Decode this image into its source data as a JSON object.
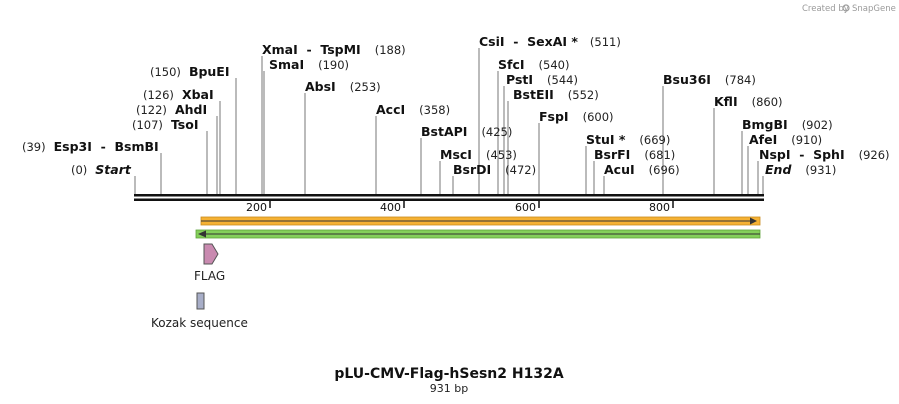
{
  "logo": {
    "created_by": "Created by",
    "brand": "SnapGene"
  },
  "plasmid": {
    "name": "pLU-CMV-Flag-hSesn2 H132A",
    "length_label": "931 bp"
  },
  "ticks": [
    "200",
    "400",
    "600",
    "800"
  ],
  "sites": [
    {
      "label": "Start",
      "pos": "(0)",
      "italic": true
    },
    {
      "label": "Esp3I  -  BsmBI",
      "pos": "(39)"
    },
    {
      "label": "TsoI",
      "pos": "(107)"
    },
    {
      "label": "AhdI",
      "pos": "(122)"
    },
    {
      "label": "XbaI",
      "pos": "(126)"
    },
    {
      "label": "BpuEI",
      "pos": "(150)"
    },
    {
      "label": "SmaI",
      "pos": "(190)"
    },
    {
      "label": "XmaI  -  TspMI",
      "pos": "(188)"
    },
    {
      "label": "AbsI",
      "pos": "(253)"
    },
    {
      "label": "AccI",
      "pos": "(358)"
    },
    {
      "label": "BstAPI",
      "pos": "(425)"
    },
    {
      "label": "MscI",
      "pos": "(453)"
    },
    {
      "label": "BsrDI",
      "pos": "(472)"
    },
    {
      "label": "CsiI  -  SexAI *",
      "pos": "(511)"
    },
    {
      "label": "SfcI",
      "pos": "(540)"
    },
    {
      "label": "PstI",
      "pos": "(544)"
    },
    {
      "label": "BstEII",
      "pos": "(552)"
    },
    {
      "label": "FspI",
      "pos": "(600)"
    },
    {
      "label": "StuI *",
      "pos": "(669)"
    },
    {
      "label": "BsrFI",
      "pos": "(681)"
    },
    {
      "label": "AcuI",
      "pos": "(696)"
    },
    {
      "label": "Bsu36I",
      "pos": "(784)"
    },
    {
      "label": "KflI",
      "pos": "(860)"
    },
    {
      "label": "BmgBI",
      "pos": "(902)"
    },
    {
      "label": "AfeI",
      "pos": "(910)"
    },
    {
      "label": "NspI  -  SphI",
      "pos": "(926)"
    },
    {
      "label": "End",
      "pos": "(931)",
      "italic": true
    }
  ],
  "features": [
    {
      "label": "FLAG",
      "color": "#c98ab0"
    },
    {
      "label": "Kozak sequence",
      "color": "#a8aec8"
    }
  ],
  "colors": {
    "orange_arrow": "#f5b133",
    "green_arrow": "#84cf5a",
    "backbone": "#111111"
  }
}
